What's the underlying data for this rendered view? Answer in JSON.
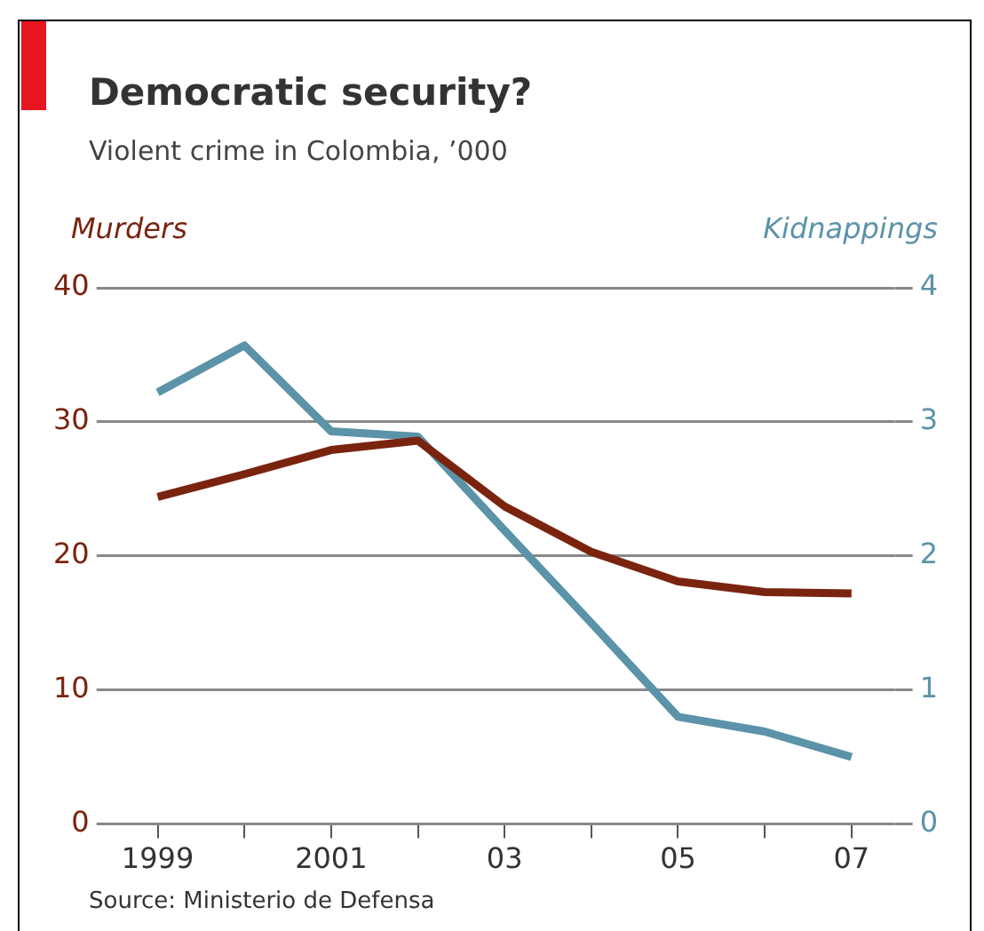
{
  "chart_data": {
    "type": "line",
    "title": "Democratic security?",
    "subtitle": "Violent crime in Colombia, ’000",
    "categories": [
      "1999",
      null,
      "2001",
      null,
      "03",
      null,
      "05",
      null,
      "07"
    ],
    "series": [
      {
        "name": "Murders",
        "color": "#7a2410",
        "values": [
          24.4,
          26.1,
          27.9,
          28.6,
          23.7,
          20.3,
          18.1,
          17.3,
          17.2
        ]
      },
      {
        "name": "Kidnappings",
        "color": "#5b93a8",
        "axis": "y2",
        "values": [
          3.22,
          3.57,
          2.93,
          2.89,
          2.19,
          1.5,
          0.8,
          0.69,
          0.5
        ]
      }
    ],
    "ylim": [
      0,
      40
    ],
    "yticks": [
      0,
      10,
      20,
      30,
      40
    ],
    "y2lim": [
      0,
      4
    ],
    "y2ticks": [
      0,
      1,
      2,
      3,
      4
    ],
    "grid": "y",
    "legend": false,
    "marker": "none",
    "line_style": "solid",
    "annotations": [
      "Source: Ministerio de Defensa"
    ]
  }
}
